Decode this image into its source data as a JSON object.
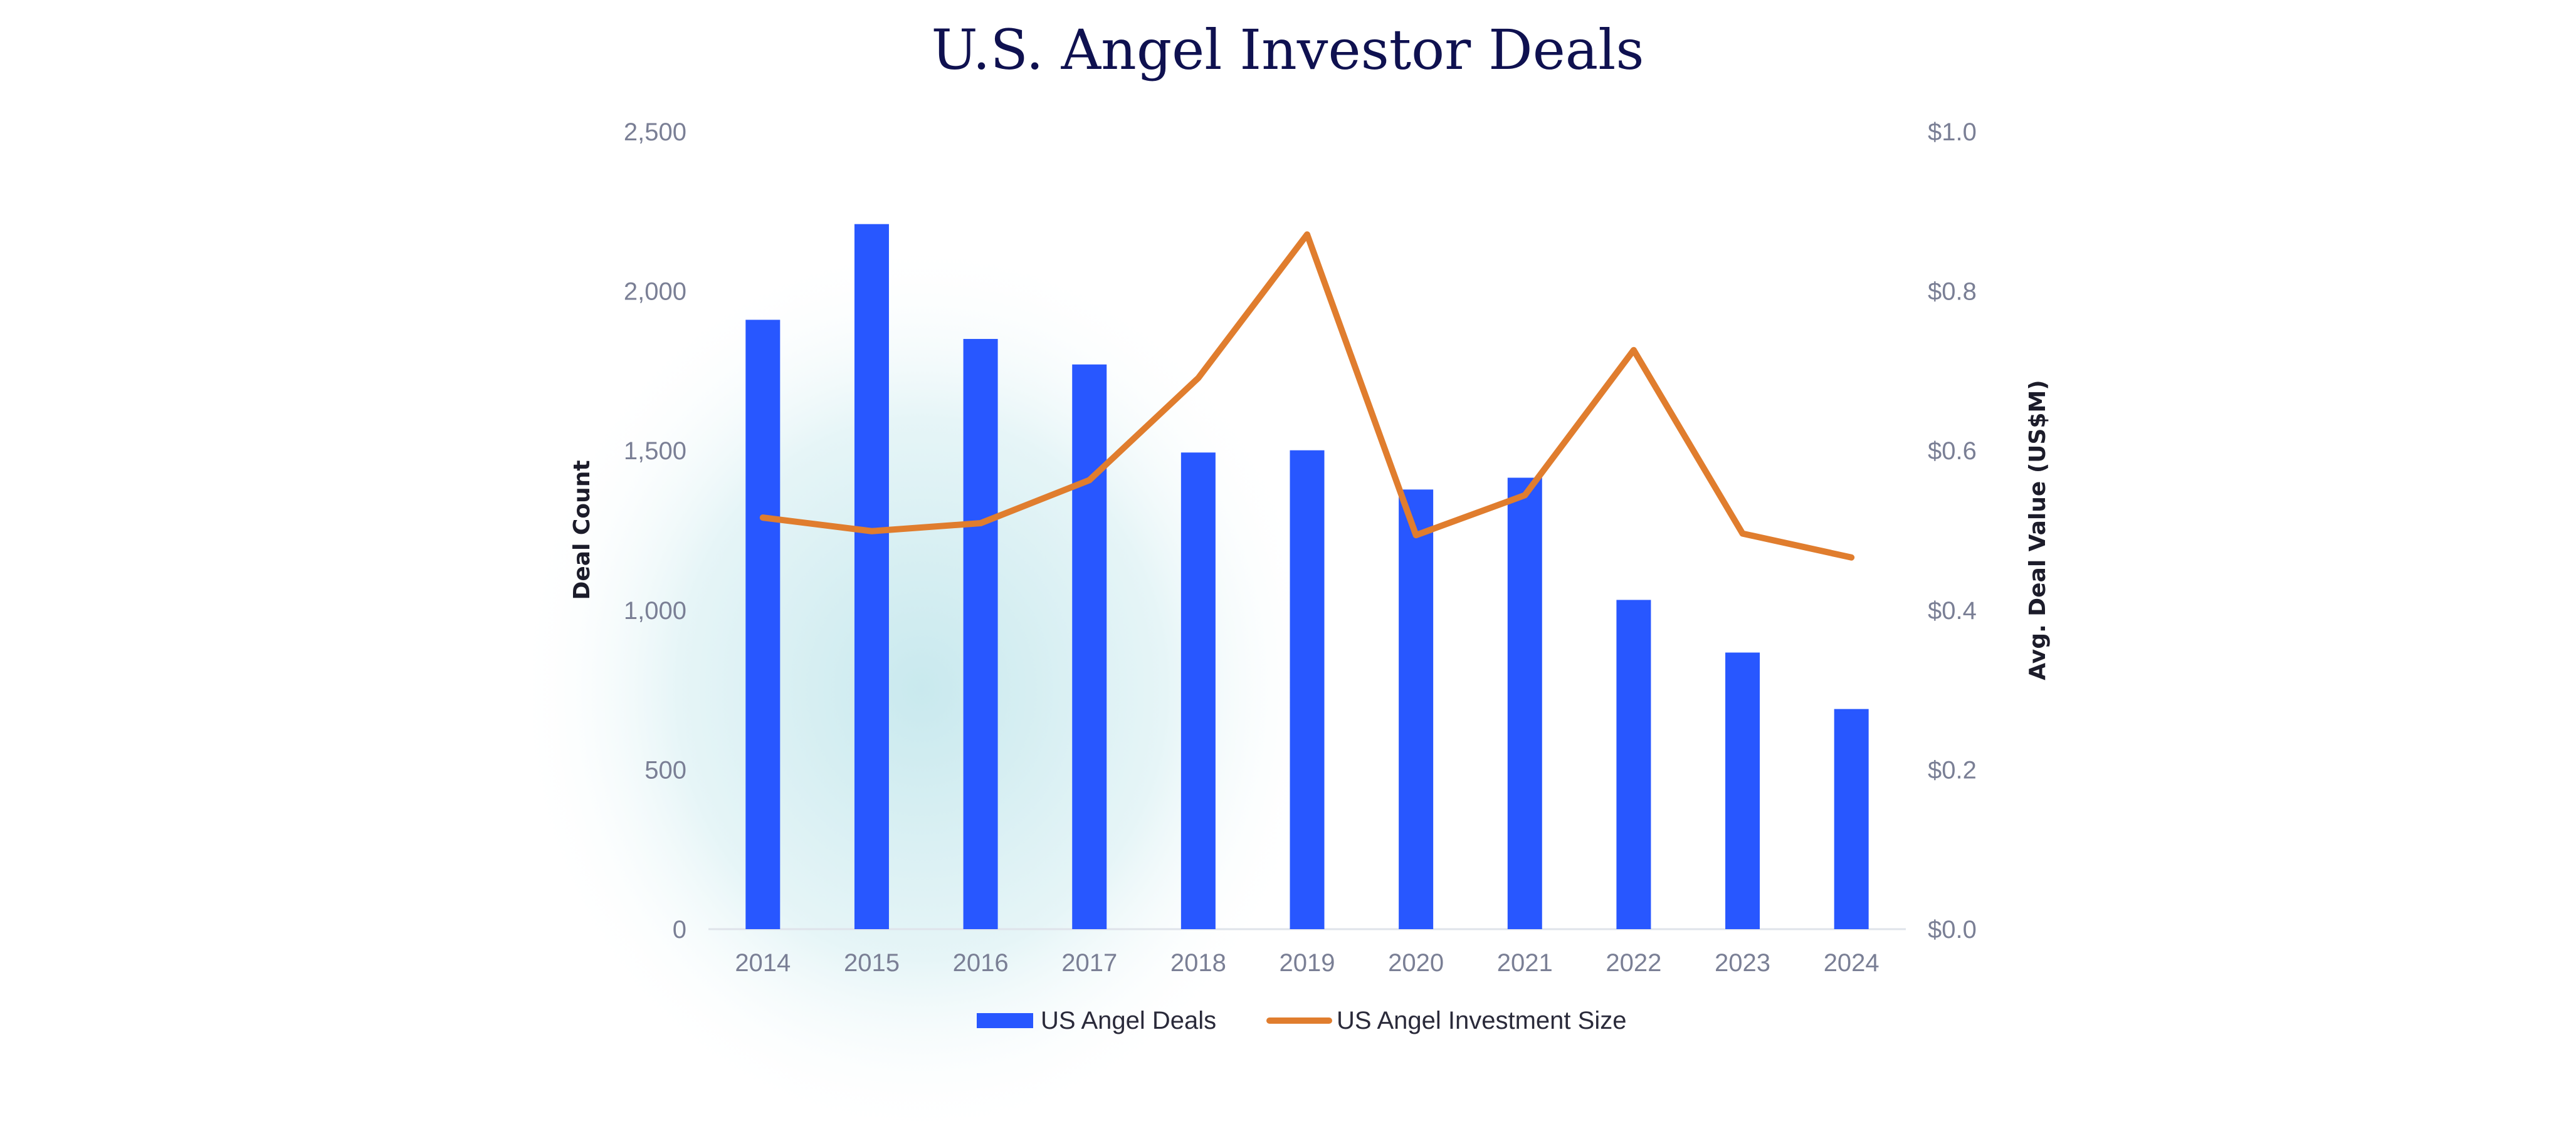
{
  "chart_data": {
    "type": "bar+line",
    "title": "U.S. Angel Investor Deals",
    "categories": [
      "2014",
      "2015",
      "2016",
      "2017",
      "2018",
      "2019",
      "2020",
      "2021",
      "2022",
      "2023",
      "2024"
    ],
    "series": [
      {
        "name": "US Angel Deals",
        "type": "bar",
        "axis": "left",
        "color": "#2857ff",
        "values": [
          1910,
          2210,
          1850,
          1770,
          1494,
          1501,
          1378,
          1415,
          1032,
          867,
          690
        ]
      },
      {
        "name": "US Angel Investment Size",
        "type": "line",
        "axis": "right",
        "color": "#e07d2e",
        "values": [
          0.516,
          0.499,
          0.509,
          0.563,
          0.691,
          0.871,
          0.494,
          0.544,
          0.726,
          0.496,
          0.466
        ]
      }
    ],
    "ylabel": "Deal Count",
    "ylabel_right": "Avg. Deal Value (US$M)",
    "ylim": [
      0,
      2500
    ],
    "ylim_right": [
      0,
      1.0
    ],
    "yticks": [
      "0",
      "500",
      "1,000",
      "1,500",
      "2,000",
      "2,500"
    ],
    "yticks_right": [
      "$0.0",
      "$0.2",
      "$0.4",
      "$0.6",
      "$0.8",
      "$1.0"
    ],
    "grid": false,
    "legend_position": "bottom"
  }
}
